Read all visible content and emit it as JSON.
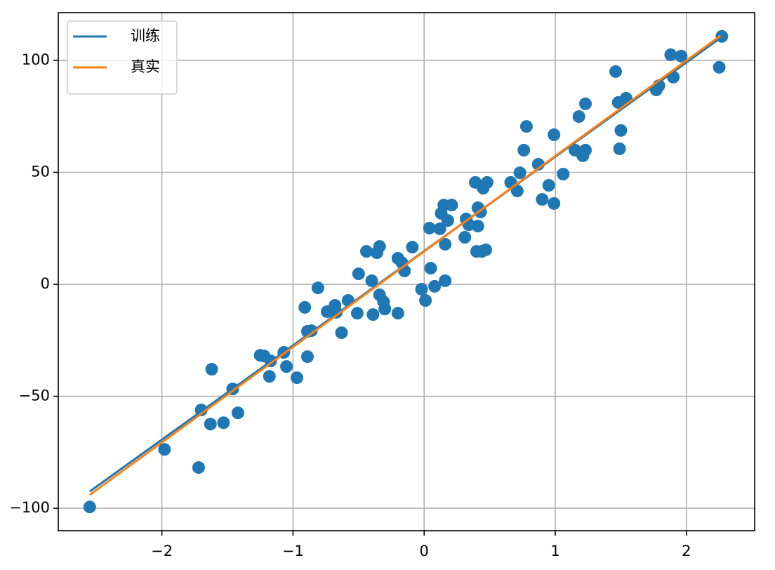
{
  "chart_data": {
    "type": "scatter",
    "grid": true,
    "legend": "upper left",
    "xlim": [
      -2.79,
      2.52
    ],
    "ylim": [
      -110.0,
      121.3
    ],
    "xticks": [
      {
        "value": -2,
        "label": "−2"
      },
      {
        "value": -1,
        "label": "−1"
      },
      0,
      1,
      2
    ],
    "yticks": [
      {
        "value": -100,
        "label": "−100"
      },
      {
        "value": -50,
        "label": "−50"
      },
      0,
      50,
      100
    ],
    "points": {
      "color": "#1f77b4",
      "x": [
        -2.55,
        -1.98,
        -1.72,
        -1.7,
        -1.63,
        -1.62,
        -1.53,
        -1.46,
        -1.42,
        -1.25,
        -1.22,
        -1.18,
        -1.17,
        -1.07,
        -1.05,
        -0.97,
        -0.91,
        -0.89,
        -0.89,
        -0.86,
        -0.81,
        -0.74,
        -0.68,
        -0.67,
        -0.63,
        -0.58,
        -0.51,
        -0.5,
        -0.44,
        -0.4,
        -0.39,
        -0.36,
        -0.34,
        -0.34,
        -0.31,
        -0.3,
        -0.2,
        -0.2,
        -0.17,
        -0.15,
        -0.09,
        -0.02,
        0.01,
        0.04,
        0.05,
        0.08,
        0.12,
        0.13,
        0.15,
        0.16,
        0.16,
        0.18,
        0.21,
        0.31,
        0.32,
        0.34,
        0.39,
        0.41,
        0.41,
        0.4,
        0.43,
        0.44,
        0.45,
        0.47,
        0.48,
        0.66,
        0.71,
        0.73,
        0.76,
        0.78,
        0.87,
        0.9,
        0.95,
        0.99,
        0.99,
        1.06,
        1.15,
        1.18,
        1.21,
        1.23,
        1.23,
        1.46,
        1.48,
        1.49,
        1.5,
        1.54,
        1.77,
        1.79,
        1.88,
        1.9,
        1.96,
        2.25,
        2.27
      ],
      "y": [
        -99.4,
        -73.7,
        -81.8,
        -56.1,
        -62.4,
        -37.9,
        -61.8,
        -46.7,
        -57.4,
        -31.7,
        -32.0,
        -41.1,
        -34.2,
        -30.4,
        -36.7,
        -41.7,
        -10.3,
        -32.3,
        -21.0,
        -20.7,
        -1.6,
        -12.2,
        -9.4,
        -12.5,
        -21.6,
        -7.2,
        -12.9,
        4.7,
        14.7,
        1.6,
        -13.5,
        14.1,
        16.9,
        -4.7,
        -7.8,
        -11.0,
        -12.9,
        11.6,
        9.7,
        6.0,
        16.6,
        -2.2,
        -7.2,
        25.1,
        7.2,
        -0.9,
        24.8,
        31.7,
        35.4,
        1.6,
        17.9,
        28.5,
        35.4,
        21.0,
        29.2,
        26.6,
        45.5,
        26.0,
        34.2,
        14.7,
        32.3,
        14.7,
        42.9,
        15.4,
        45.5,
        45.5,
        41.7,
        49.8,
        59.9,
        70.5,
        53.6,
        37.9,
        44.2,
        36.1,
        66.8,
        49.2,
        59.9,
        74.9,
        57.4,
        59.9,
        80.6,
        95.0,
        81.2,
        60.5,
        68.7,
        83.1,
        86.8,
        88.7,
        102.5,
        92.5,
        101.9,
        96.9,
        110.7
      ]
    },
    "series": [
      {
        "name": "训练",
        "color": "#1f77b4",
        "x": [
          -2.55,
          2.26
        ],
        "y": [
          -92.5,
          110.0
        ]
      },
      {
        "name": "真实",
        "color": "#ff7f0e",
        "x": [
          -2.55,
          2.26
        ],
        "y": [
          -94.0,
          111.0
        ]
      }
    ]
  }
}
